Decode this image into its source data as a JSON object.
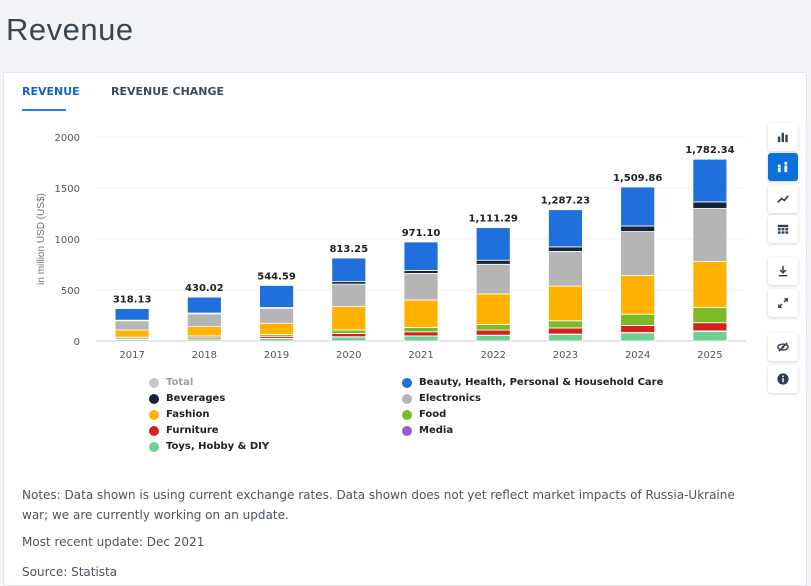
{
  "page": {
    "title": "Revenue"
  },
  "tabs": [
    {
      "label": "REVENUE",
      "active": true
    },
    {
      "label": "REVENUE CHANGE",
      "active": false
    }
  ],
  "toolbar": {
    "buttons": [
      {
        "icon": "bar-chart-icon",
        "active": false
      },
      {
        "icon": "stacked-bar-icon",
        "active": true
      },
      {
        "icon": "line-chart-icon",
        "active": false
      },
      {
        "icon": "table-icon",
        "active": false
      },
      {
        "icon": "download-icon",
        "active": false
      },
      {
        "icon": "expand-icon",
        "active": false
      },
      {
        "icon": "hide-icon",
        "active": false
      },
      {
        "icon": "info-icon",
        "active": false
      }
    ]
  },
  "chart_data": {
    "type": "bar",
    "stacked": true,
    "ylabel": "in million USD (US$)",
    "ylim": [
      0,
      2000
    ],
    "yticks": [
      0,
      500,
      1000,
      1500,
      2000
    ],
    "categories": [
      "2017",
      "2018",
      "2019",
      "2020",
      "2021",
      "2022",
      "2023",
      "2024",
      "2025"
    ],
    "totals": [
      "318.13",
      "430.02",
      "544.59",
      "813.25",
      "971.10",
      "1,111.29",
      "1,287.23",
      "1,509.86",
      "1,782.34"
    ],
    "series": [
      {
        "name": "Toys, Hobby & DIY",
        "color": "#6fcf97",
        "values": [
          15,
          20,
          25,
          40,
          48,
          55,
          65,
          80,
          95
        ]
      },
      {
        "name": "Media",
        "color": "#9b59d0",
        "values": [
          1,
          1,
          1,
          2,
          2,
          2,
          3,
          3,
          4
        ]
      },
      {
        "name": "Furniture",
        "color": "#d62020",
        "values": [
          12,
          16,
          20,
          32,
          40,
          50,
          60,
          70,
          80
        ]
      },
      {
        "name": "Food",
        "color": "#7cba2a",
        "values": [
          10,
          14,
          18,
          34,
          42,
          55,
          70,
          110,
          150
        ]
      },
      {
        "name": "Fashion",
        "color": "#ffb300",
        "values": [
          70,
          90,
          110,
          230,
          270,
          300,
          340,
          380,
          450
        ]
      },
      {
        "name": "Electronics",
        "color": "#b5b5b5",
        "values": [
          90,
          125,
          145,
          220,
          260,
          290,
          340,
          430,
          520
        ]
      },
      {
        "name": "Beverages",
        "color": "#14243a",
        "values": [
          6,
          8,
          10,
          24,
          30,
          40,
          45,
          55,
          65
        ]
      },
      {
        "name": "Beauty, Health, Personal & Household Care",
        "color": "#1f6fdc",
        "values": [
          114.13,
          156.02,
          215.59,
          231.25,
          279.1,
          319.29,
          364.23,
          381.86,
          418.34
        ]
      }
    ],
    "legend": {
      "placement": "bottom",
      "entries": [
        {
          "name": "Total",
          "color": "#c8c8c8",
          "muted": true
        },
        {
          "name": "Beauty, Health, Personal & Household Care",
          "color": "#1f6fdc",
          "muted": false
        },
        {
          "name": "Beverages",
          "color": "#14243a",
          "muted": false
        },
        {
          "name": "Electronics",
          "color": "#b5b5b5",
          "muted": false
        },
        {
          "name": "Fashion",
          "color": "#ffb300",
          "muted": false
        },
        {
          "name": "Food",
          "color": "#7cba2a",
          "muted": false
        },
        {
          "name": "Furniture",
          "color": "#d62020",
          "muted": false
        },
        {
          "name": "Media",
          "color": "#9b59d0",
          "muted": false
        },
        {
          "name": "Toys, Hobby & DIY",
          "color": "#6fcf97",
          "muted": false
        }
      ]
    },
    "grid": true
  },
  "notes": {
    "line1": "Notes: Data shown is using current exchange rates. Data shown does not yet reflect market impacts of Russia-Ukraine",
    "line2": "war; we are currently working on an update.",
    "update": "Most recent update: Dec 2021",
    "source": "Source: Statista"
  }
}
